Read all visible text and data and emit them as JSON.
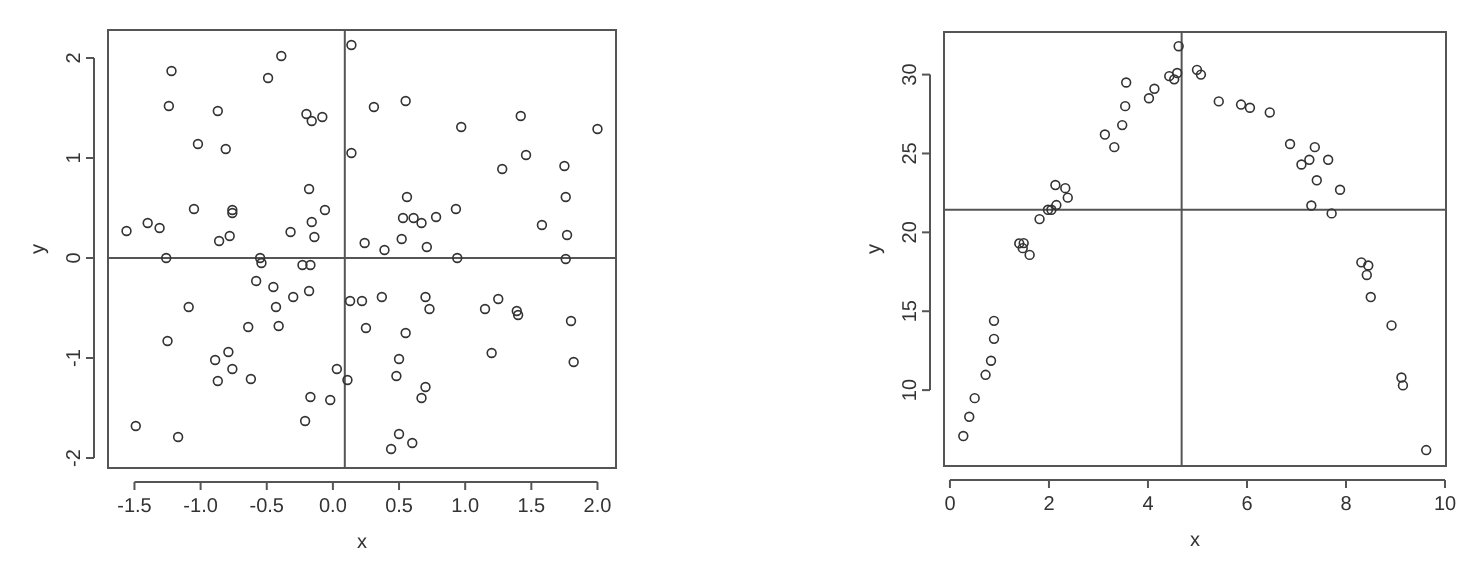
{
  "chart_data": [
    {
      "type": "scatter",
      "xlabel": "x",
      "ylabel": "y",
      "color": "#333333",
      "marker": "circle",
      "grid": false,
      "xlim": [
        -1.7,
        2.14
      ],
      "ylim": [
        -2.1,
        2.28
      ],
      "xticks": [
        {
          "value": -1.5,
          "label": "-1.5"
        },
        {
          "value": -1,
          "label": "-1.0"
        },
        {
          "value": -0.5,
          "label": "-0.5"
        },
        {
          "value": 0,
          "label": "0.0"
        },
        {
          "value": 0.5,
          "label": "0.5"
        },
        {
          "value": 1,
          "label": "1.0"
        },
        {
          "value": 1.5,
          "label": "1.5"
        },
        {
          "value": 2,
          "label": "2.0"
        }
      ],
      "yticks": [
        -2,
        -1,
        0,
        1,
        2
      ],
      "ref_lines": [
        {
          "axis": "x",
          "value": 0.09
        },
        {
          "axis": "y",
          "value": 0
        }
      ],
      "x": [
        -1.56,
        -1.49,
        -1.4,
        -1.31,
        -1.26,
        -1.25,
        -1.24,
        -1.22,
        -1.17,
        -1.09,
        -1.05,
        -1.02,
        -0.89,
        -0.87,
        -0.86,
        -0.87,
        -0.81,
        -0.79,
        -0.78,
        -0.76,
        -0.76,
        -0.76,
        -0.64,
        -0.62,
        -0.58,
        -0.55,
        -0.54,
        -0.49,
        -0.45,
        -0.43,
        -0.41,
        -0.39,
        -0.32,
        -0.3,
        -0.23,
        -0.21,
        -0.2,
        -0.18,
        -0.18,
        -0.17,
        -0.17,
        -0.16,
        -0.16,
        -0.14,
        -0.08,
        -0.06,
        -0.02,
        0.03,
        0.11,
        0.13,
        0.14,
        0.14,
        0.22,
        0.24,
        0.25,
        0.31,
        0.37,
        0.39,
        0.55,
        0.56,
        0.53,
        0.52,
        0.61,
        0.67,
        0.55,
        0.5,
        0.48,
        0.5,
        0.44,
        0.6,
        0.7,
        0.67,
        0.7,
        0.73,
        0.71,
        0.78,
        0.93,
        0.94,
        0.97,
        1.15,
        1.2,
        1.25,
        1.28,
        1.39,
        1.4,
        1.42,
        1.46,
        1.58,
        1.75,
        1.76,
        1.77,
        1.76,
        1.8,
        1.82,
        2.0
      ],
      "values": [
        0.27,
        -1.68,
        0.35,
        0.3,
        0,
        -0.83,
        1.52,
        1.87,
        -1.79,
        -0.49,
        0.49,
        1.14,
        -1.02,
        -1.23,
        0.17,
        1.47,
        1.09,
        -0.94,
        0.22,
        0.48,
        0.45,
        -1.11,
        -0.69,
        -1.21,
        -0.23,
        0,
        -0.05,
        1.8,
        -0.29,
        -0.49,
        -0.68,
        2.02,
        0.26,
        -0.39,
        -0.07,
        -1.63,
        1.44,
        -0.33,
        0.69,
        -0.07,
        -1.39,
        1.37,
        0.36,
        0.21,
        1.41,
        0.48,
        -1.42,
        -1.11,
        -1.22,
        -0.43,
        2.13,
        1.05,
        -0.43,
        0.15,
        -0.7,
        1.51,
        -0.39,
        0.08,
        1.57,
        0.61,
        0.4,
        0.19,
        0.4,
        0.35,
        -0.75,
        -1.01,
        -1.18,
        -1.76,
        -1.91,
        -1.85,
        -1.29,
        -1.4,
        -0.39,
        -0.51,
        0.11,
        0.41,
        0.49,
        0,
        1.31,
        -0.51,
        -0.95,
        -0.41,
        0.89,
        -0.53,
        -0.57,
        1.42,
        1.03,
        0.33,
        0.92,
        0.61,
        0.23,
        -0.01,
        -0.63,
        -1.04,
        1.29
      ]
    },
    {
      "type": "scatter",
      "xlabel": "x",
      "ylabel": "y",
      "color": "#333333",
      "marker": "circle",
      "grid": false,
      "xlim": [
        -0.12,
        10.02
      ],
      "ylim": [
        5.19,
        32.7
      ],
      "xticks": [
        0,
        2,
        4,
        6,
        8,
        10
      ],
      "yticks": [
        10,
        15,
        20,
        25,
        30
      ],
      "ref_lines": [
        {
          "axis": "x",
          "value": 4.68
        },
        {
          "axis": "y",
          "value": 21.43
        }
      ],
      "x": [
        0.27,
        0.39,
        0.5,
        0.72,
        0.83,
        0.89,
        0.89,
        1.4,
        1.49,
        1.47,
        1.61,
        1.81,
        1.98,
        2.05,
        2.15,
        2.13,
        2.33,
        2.38,
        3.13,
        3.32,
        3.48,
        3.54,
        3.56,
        4.02,
        4.13,
        4.43,
        4.53,
        4.59,
        4.62,
        4.99,
        5.07,
        5.43,
        5.88,
        6.06,
        6.46,
        6.87,
        7.37,
        7.1,
        7.26,
        7.64,
        7.41,
        7.88,
        7.3,
        7.71,
        8.31,
        8.45,
        8.42,
        8.5,
        8.92,
        9.12,
        9.15,
        9.62
      ],
      "values": [
        7.09,
        8.31,
        9.49,
        10.97,
        11.86,
        13.25,
        14.39,
        19.3,
        19.32,
        19.0,
        18.57,
        20.84,
        21.43,
        21.43,
        21.73,
        23.0,
        22.8,
        22.2,
        26.2,
        25.4,
        26.8,
        28.0,
        29.5,
        28.5,
        29.1,
        29.9,
        29.7,
        30.1,
        31.8,
        30.3,
        30.0,
        28.3,
        28.1,
        27.9,
        27.6,
        25.6,
        25.4,
        24.3,
        24.6,
        24.6,
        23.3,
        22.7,
        21.7,
        21.2,
        18.1,
        17.9,
        17.3,
        15.9,
        14.1,
        10.8,
        10.3,
        6.2
      ]
    }
  ]
}
